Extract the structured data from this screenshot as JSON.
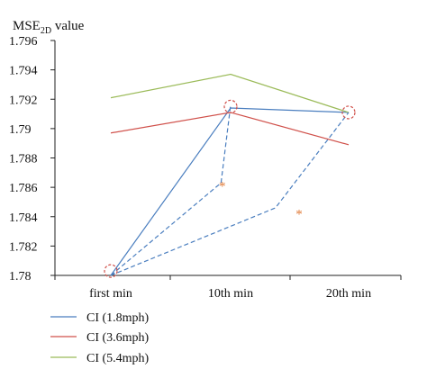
{
  "chart_data": {
    "type": "line",
    "ylabel": "MSE",
    "ylabel_sub": "2D",
    "ylabel_suffix": " value",
    "xlabel": "",
    "categories": [
      "first min",
      "10th min",
      "20th min"
    ],
    "ylim": [
      1.78,
      1.796
    ],
    "yticks": [
      "1.796",
      "1.794",
      "1.792",
      "1.79",
      "1.788",
      "1.786",
      "1.784",
      "1.782",
      "1.78"
    ],
    "series": [
      {
        "name": "CI (1.8mph)",
        "values": [
          1.78,
          1.7914,
          1.7911
        ],
        "color": "#4a7ebf"
      },
      {
        "name": "CI (3.6mph)",
        "values": [
          1.7897,
          1.7911,
          1.7889
        ],
        "color": "#d0504a"
      },
      {
        "name": "CI (5.4mph)",
        "values": [
          1.7921,
          1.7937,
          1.7911
        ],
        "color": "#9bbb59"
      }
    ],
    "significance_links": [
      {
        "from": [
          0,
          1.78
        ],
        "via": [
          0.92,
          1.7863
        ],
        "to": [
          1,
          1.7916
        ]
      },
      {
        "from": [
          0,
          1.78
        ],
        "via": [
          1.38,
          1.7846
        ],
        "to": [
          2,
          1.7911
        ]
      }
    ],
    "significance_circles": [
      {
        "category_index": 0,
        "value": 1.7803
      },
      {
        "category_index": 1,
        "value": 1.7915
      },
      {
        "category_index": 2,
        "value": 1.7911
      }
    ],
    "annotations": [
      {
        "text": "*",
        "x": 0.93,
        "y": 1.7858,
        "color": "#e07b39"
      },
      {
        "text": "*",
        "x": 1.58,
        "y": 1.7839,
        "color": "#e07b39"
      }
    ],
    "grid": false,
    "legend_position": "bottom-left"
  }
}
